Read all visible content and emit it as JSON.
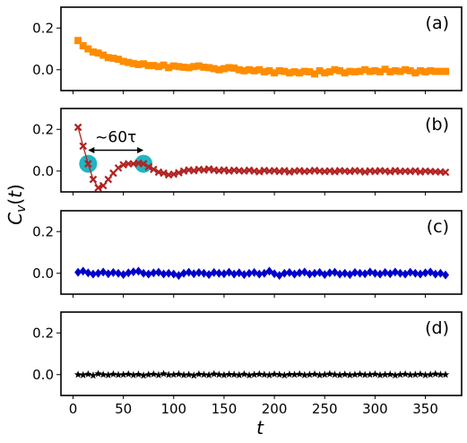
{
  "chart_data": {
    "type": "scatter",
    "xlabel": "t",
    "ylabel": "C_v(t)",
    "xlim": [
      -12,
      386
    ],
    "ylim": [
      -0.1,
      0.3
    ],
    "x_ticks": [
      0,
      50,
      100,
      150,
      200,
      250,
      300,
      350
    ],
    "y_ticks": [
      0.0,
      0.2
    ],
    "y_tick_labels": [
      "0.0",
      "0.2"
    ],
    "annotation": {
      "text": "~60τ",
      "x_start": 15,
      "x_end": 70,
      "y": 0.1,
      "highlighted_points": [
        {
          "x": 15,
          "y": 0.035
        },
        {
          "x": 70,
          "y": 0.035
        }
      ],
      "highlight_color": "#1fb5c1"
    },
    "panels": [
      {
        "label": "(a)",
        "color": "#ff8c00",
        "marker": "square",
        "line": false,
        "x": [
          5,
          10,
          15,
          20,
          25,
          30,
          35,
          40,
          45,
          50,
          55,
          60,
          65,
          70,
          75,
          80,
          85,
          90,
          95,
          100,
          105,
          110,
          115,
          120,
          125,
          130,
          135,
          140,
          145,
          150,
          155,
          160,
          165,
          170,
          175,
          180,
          185,
          190,
          195,
          200,
          205,
          210,
          215,
          220,
          225,
          230,
          235,
          240,
          245,
          250,
          255,
          260,
          265,
          270,
          275,
          280,
          285,
          290,
          295,
          300,
          305,
          310,
          315,
          320,
          325,
          330,
          335,
          340,
          345,
          350,
          355,
          360,
          365,
          370
        ],
        "y": [
          0.14,
          0.115,
          0.1,
          0.085,
          0.08,
          0.07,
          0.058,
          0.055,
          0.05,
          0.04,
          0.035,
          0.03,
          0.025,
          0.028,
          0.02,
          0.02,
          0.015,
          0.022,
          0.01,
          0.018,
          0.015,
          0.012,
          0.01,
          0.015,
          0.018,
          0.012,
          0.01,
          0.005,
          0.0,
          0.005,
          0.01,
          0.008,
          0.0,
          -0.005,
          0.0,
          -0.005,
          0.0,
          -0.01,
          -0.005,
          -0.015,
          -0.005,
          -0.008,
          -0.015,
          -0.01,
          -0.015,
          -0.008,
          -0.01,
          -0.02,
          -0.005,
          -0.015,
          -0.01,
          0.0,
          -0.005,
          -0.015,
          -0.008,
          -0.01,
          -0.008,
          0.0,
          -0.008,
          -0.005,
          -0.01,
          0.002,
          -0.01,
          -0.005,
          -0.008,
          0.0,
          -0.005,
          -0.015,
          -0.005,
          -0.01,
          -0.005,
          -0.008,
          -0.008,
          -0.008
        ]
      },
      {
        "label": "(b)",
        "color": "#b22222",
        "marker": "x",
        "line": true,
        "x": [
          5,
          10,
          15,
          20,
          25,
          30,
          35,
          40,
          45,
          50,
          55,
          60,
          65,
          70,
          75,
          80,
          85,
          90,
          95,
          100,
          105,
          110,
          115,
          120,
          125,
          130,
          135,
          140,
          145,
          150,
          155,
          160,
          165,
          170,
          175,
          180,
          185,
          190,
          195,
          200,
          205,
          210,
          215,
          220,
          225,
          230,
          235,
          240,
          245,
          250,
          255,
          260,
          265,
          270,
          275,
          280,
          285,
          290,
          295,
          300,
          305,
          310,
          315,
          320,
          325,
          330,
          335,
          340,
          345,
          350,
          355,
          360,
          365,
          370
        ],
        "y": [
          0.21,
          0.12,
          0.035,
          -0.04,
          -0.08,
          -0.07,
          -0.04,
          -0.01,
          0.015,
          0.03,
          0.035,
          0.035,
          0.038,
          0.035,
          0.02,
          0.008,
          -0.005,
          -0.01,
          -0.018,
          -0.015,
          -0.008,
          0.0,
          0.005,
          0.002,
          0.008,
          0.005,
          0.01,
          0.005,
          0.002,
          0.005,
          0.0,
          0.004,
          0.002,
          0.0,
          0.004,
          0.0,
          -0.003,
          0.003,
          0.0,
          0.002,
          -0.002,
          0.002,
          -0.004,
          0.0,
          0.002,
          -0.002,
          0.0,
          0.003,
          0.0,
          -0.002,
          0.001,
          -0.003,
          0.002,
          0.0,
          -0.002,
          0.002,
          0.0,
          -0.004,
          0.001,
          -0.002,
          0.002,
          0.0,
          -0.003,
          0.002,
          -0.002,
          0.0,
          -0.002,
          0.001,
          -0.004,
          0.0,
          -0.002,
          -0.003,
          -0.004,
          -0.006
        ]
      },
      {
        "label": "(c)",
        "color": "#0000cd",
        "marker": "diamond",
        "line": true,
        "x": [
          5,
          10,
          15,
          20,
          25,
          30,
          35,
          40,
          45,
          50,
          55,
          60,
          65,
          70,
          75,
          80,
          85,
          90,
          95,
          100,
          105,
          110,
          115,
          120,
          125,
          130,
          135,
          140,
          145,
          150,
          155,
          160,
          165,
          170,
          175,
          180,
          185,
          190,
          195,
          200,
          205,
          210,
          215,
          220,
          225,
          230,
          235,
          240,
          245,
          250,
          255,
          260,
          265,
          270,
          275,
          280,
          285,
          290,
          295,
          300,
          305,
          310,
          315,
          320,
          325,
          330,
          335,
          340,
          345,
          350,
          355,
          360,
          365,
          370
        ],
        "y": [
          0.005,
          0.01,
          0.002,
          -0.004,
          0.0,
          0.006,
          -0.002,
          0.004,
          0.0,
          -0.006,
          0.002,
          0.007,
          0.01,
          0.0,
          -0.004,
          0.002,
          0.005,
          -0.003,
          0.0,
          -0.004,
          -0.01,
          0.0,
          0.005,
          -0.002,
          0.003,
          0.0,
          -0.006,
          0.004,
          0.0,
          -0.002,
          0.005,
          -0.004,
          0.002,
          -0.006,
          0.0,
          0.004,
          -0.004,
          0.0,
          0.01,
          -0.002,
          -0.01,
          0.0,
          0.004,
          -0.004,
          0.002,
          0.006,
          -0.004,
          0.0,
          0.004,
          -0.006,
          0.002,
          0.005,
          -0.004,
          0.0,
          -0.006,
          0.004,
          0.0,
          -0.002,
          0.006,
          0.0,
          -0.004,
          0.004,
          -0.002,
          0.006,
          0.0,
          -0.004,
          0.005,
          0.0,
          -0.004,
          0.002,
          0.006,
          -0.004,
          0.0,
          -0.008
        ]
      },
      {
        "label": "(d)",
        "color": "#000000",
        "marker": "star",
        "line": true,
        "x": [
          5,
          10,
          15,
          20,
          25,
          30,
          35,
          40,
          45,
          50,
          55,
          60,
          65,
          70,
          75,
          80,
          85,
          90,
          95,
          100,
          105,
          110,
          115,
          120,
          125,
          130,
          135,
          140,
          145,
          150,
          155,
          160,
          165,
          170,
          175,
          180,
          185,
          190,
          195,
          200,
          205,
          210,
          215,
          220,
          225,
          230,
          235,
          240,
          245,
          250,
          255,
          260,
          265,
          270,
          275,
          280,
          285,
          290,
          295,
          300,
          305,
          310,
          315,
          320,
          325,
          330,
          335,
          340,
          345,
          350,
          355,
          360,
          365,
          370
        ],
        "y": [
          0.0,
          -0.002,
          0.002,
          -0.004,
          0.004,
          0.0,
          -0.002,
          0.002,
          -0.001,
          0.0,
          0.002,
          -0.002,
          0.001,
          -0.004,
          0.0,
          0.002,
          -0.002,
          0.004,
          -0.001,
          0.0,
          0.002,
          -0.002,
          0.0,
          -0.004,
          0.002,
          0.0,
          -0.002,
          0.003,
          0.0,
          -0.002,
          0.001,
          0.0,
          -0.002,
          0.002,
          -0.003,
          0.0,
          0.002,
          0.0,
          -0.002,
          0.002,
          0.0,
          -0.003,
          0.001,
          0.0,
          0.002,
          -0.002,
          0.0,
          0.002,
          -0.002,
          0.0,
          0.003,
          0.0,
          -0.002,
          0.001,
          -0.002,
          0.0,
          0.002,
          -0.001,
          0.0,
          0.002,
          -0.002,
          0.0,
          0.001,
          -0.003,
          0.0,
          0.002,
          -0.001,
          0.0,
          0.002,
          -0.002,
          0.0,
          0.003,
          0.0,
          0.0
        ]
      }
    ]
  }
}
